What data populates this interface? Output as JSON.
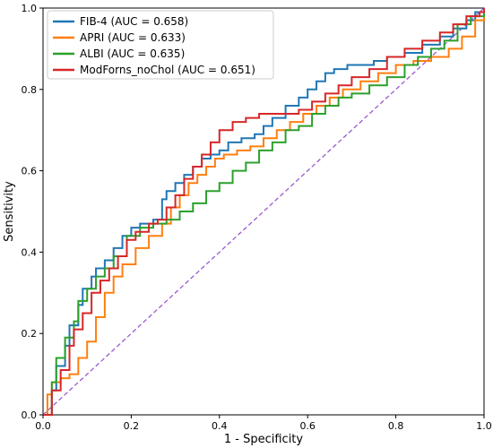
{
  "chart_data": {
    "type": "line",
    "title": "",
    "xlabel": "1 - Specificity",
    "ylabel": "Sensitivity",
    "xlim": [
      0.0,
      1.0
    ],
    "ylim": [
      0.0,
      1.0
    ],
    "xticks": [
      "0.0",
      "0.2",
      "0.4",
      "0.6",
      "0.8",
      "1.0"
    ],
    "yticks": [
      "0.0",
      "0.2",
      "0.4",
      "0.6",
      "0.8",
      "1.0"
    ],
    "grid": false,
    "legend_position": "upper left",
    "reference_line": {
      "x": [
        0,
        1
      ],
      "y": [
        0,
        1
      ],
      "color": "#9b59d0",
      "style": "dashed"
    },
    "series": [
      {
        "name": "FIB-4 (AUC = 0.658)",
        "color": "#1f77b4",
        "x": [
          0.0,
          0.02,
          0.03,
          0.05,
          0.06,
          0.08,
          0.09,
          0.11,
          0.12,
          0.14,
          0.16,
          0.18,
          0.2,
          0.22,
          0.25,
          0.27,
          0.28,
          0.3,
          0.32,
          0.34,
          0.36,
          0.38,
          0.4,
          0.42,
          0.45,
          0.48,
          0.5,
          0.52,
          0.55,
          0.58,
          0.6,
          0.62,
          0.64,
          0.66,
          0.69,
          0.72,
          0.75,
          0.78,
          0.82,
          0.86,
          0.9,
          0.93,
          0.96,
          0.98,
          1.0
        ],
        "y": [
          0.0,
          0.06,
          0.12,
          0.17,
          0.22,
          0.27,
          0.31,
          0.34,
          0.36,
          0.38,
          0.41,
          0.44,
          0.46,
          0.47,
          0.48,
          0.53,
          0.55,
          0.57,
          0.59,
          0.61,
          0.63,
          0.64,
          0.65,
          0.67,
          0.68,
          0.69,
          0.71,
          0.73,
          0.76,
          0.78,
          0.8,
          0.82,
          0.84,
          0.85,
          0.86,
          0.86,
          0.87,
          0.88,
          0.89,
          0.91,
          0.93,
          0.95,
          0.97,
          0.99,
          1.0
        ]
      },
      {
        "name": "APRI (AUC = 0.633)",
        "color": "#ff7f0e",
        "x": [
          0.0,
          0.01,
          0.02,
          0.04,
          0.06,
          0.08,
          0.1,
          0.12,
          0.14,
          0.16,
          0.18,
          0.21,
          0.24,
          0.27,
          0.29,
          0.31,
          0.33,
          0.35,
          0.37,
          0.39,
          0.41,
          0.44,
          0.47,
          0.5,
          0.53,
          0.56,
          0.59,
          0.62,
          0.65,
          0.68,
          0.72,
          0.76,
          0.8,
          0.84,
          0.88,
          0.92,
          0.95,
          0.98,
          1.0
        ],
        "y": [
          0.0,
          0.05,
          0.08,
          0.09,
          0.1,
          0.14,
          0.18,
          0.24,
          0.3,
          0.34,
          0.37,
          0.41,
          0.44,
          0.47,
          0.51,
          0.54,
          0.57,
          0.59,
          0.61,
          0.63,
          0.64,
          0.65,
          0.66,
          0.68,
          0.7,
          0.72,
          0.74,
          0.76,
          0.78,
          0.8,
          0.82,
          0.84,
          0.86,
          0.87,
          0.88,
          0.9,
          0.93,
          0.97,
          1.0
        ]
      },
      {
        "name": "ALBI (AUC = 0.635)",
        "color": "#2ca02c",
        "x": [
          0.0,
          0.02,
          0.03,
          0.05,
          0.07,
          0.08,
          0.1,
          0.12,
          0.14,
          0.16,
          0.19,
          0.22,
          0.25,
          0.28,
          0.31,
          0.34,
          0.37,
          0.4,
          0.43,
          0.46,
          0.49,
          0.52,
          0.55,
          0.58,
          0.61,
          0.64,
          0.67,
          0.7,
          0.74,
          0.78,
          0.82,
          0.85,
          0.88,
          0.91,
          0.94,
          0.97,
          1.0
        ],
        "y": [
          0.0,
          0.08,
          0.14,
          0.19,
          0.23,
          0.28,
          0.31,
          0.34,
          0.36,
          0.39,
          0.44,
          0.46,
          0.47,
          0.48,
          0.5,
          0.52,
          0.55,
          0.57,
          0.6,
          0.62,
          0.65,
          0.67,
          0.7,
          0.71,
          0.74,
          0.76,
          0.78,
          0.79,
          0.81,
          0.83,
          0.86,
          0.88,
          0.9,
          0.92,
          0.96,
          0.98,
          1.0
        ]
      },
      {
        "name": "ModForns_noChol (AUC = 0.651)",
        "color": "#d62728",
        "x": [
          0.0,
          0.02,
          0.04,
          0.06,
          0.07,
          0.09,
          0.11,
          0.13,
          0.15,
          0.17,
          0.19,
          0.21,
          0.24,
          0.26,
          0.28,
          0.3,
          0.32,
          0.34,
          0.36,
          0.38,
          0.4,
          0.43,
          0.46,
          0.49,
          0.52,
          0.55,
          0.58,
          0.61,
          0.64,
          0.67,
          0.7,
          0.74,
          0.78,
          0.82,
          0.86,
          0.9,
          0.93,
          0.96,
          0.99,
          1.0
        ],
        "y": [
          0.0,
          0.06,
          0.11,
          0.17,
          0.21,
          0.25,
          0.3,
          0.33,
          0.36,
          0.39,
          0.43,
          0.45,
          0.47,
          0.48,
          0.51,
          0.54,
          0.58,
          0.61,
          0.64,
          0.67,
          0.7,
          0.72,
          0.73,
          0.74,
          0.74,
          0.74,
          0.75,
          0.77,
          0.79,
          0.81,
          0.83,
          0.85,
          0.88,
          0.9,
          0.92,
          0.94,
          0.96,
          0.98,
          0.99,
          1.0
        ]
      }
    ]
  }
}
